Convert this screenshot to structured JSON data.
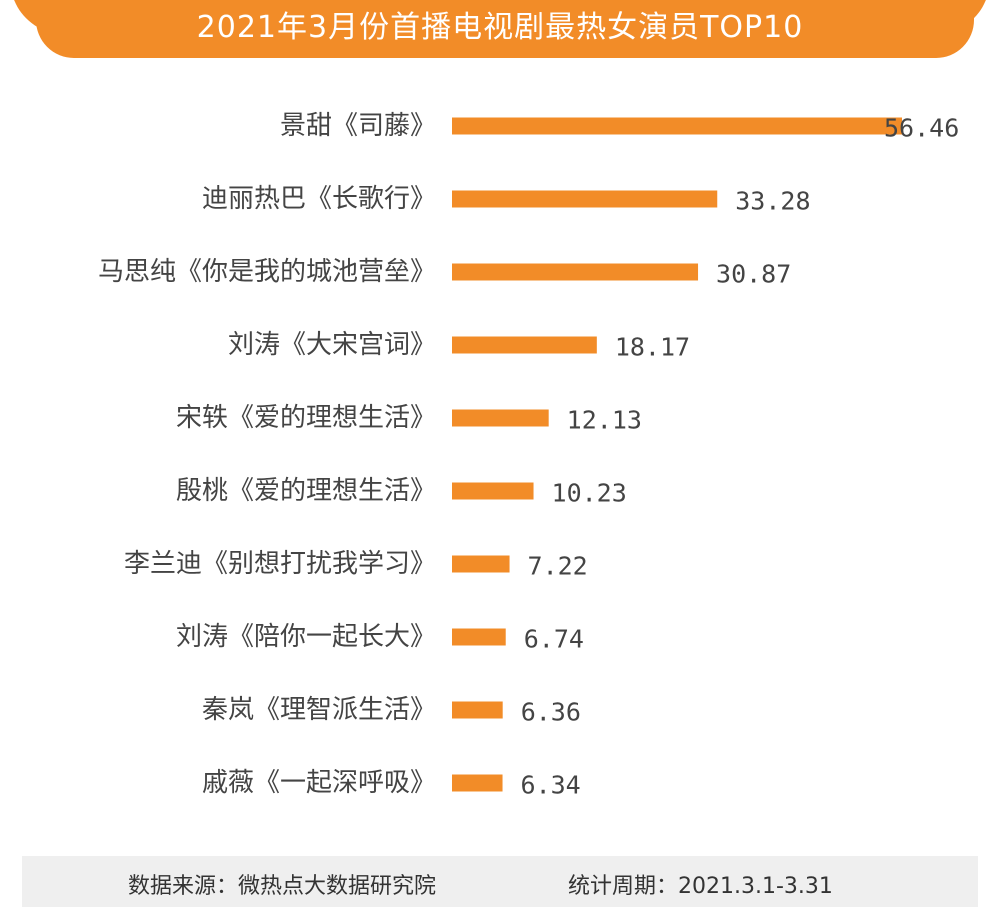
{
  "title": "2021年3月份首播电视剧最热女演员TOP10",
  "colors": {
    "accent": "#F28C28",
    "bar": "#F28C28",
    "text": "#444444",
    "footer_bg": "#EFEFEF"
  },
  "chart_data": {
    "type": "bar",
    "orientation": "horizontal",
    "title": "2021年3月份首播电视剧最热女演员TOP10",
    "categories": [
      "景甜《司藤》",
      "迪丽热巴《长歌行》",
      "马思纯《你是我的城池营垒》",
      "刘涛《大宋宫词》",
      "宋轶《爱的理想生活》",
      "殷桃《爱的理想生活》",
      "李兰迪《别想打扰我学习》",
      "刘涛《陪你一起长大》",
      "秦岚《理智派生活》",
      "戚薇《一起深呼吸》"
    ],
    "values": [
      56.46,
      33.28,
      30.87,
      18.17,
      12.13,
      10.23,
      7.22,
      6.74,
      6.36,
      6.34
    ],
    "value_labels": [
      "56.46",
      "33.28",
      "30.87",
      "18.17",
      "12.13",
      "10.23",
      "7.22",
      "6.74",
      "6.36",
      "6.34"
    ],
    "xlabel": "",
    "ylabel": "",
    "xlim": [
      0,
      56.46
    ],
    "grid": false,
    "legend": "none"
  },
  "footer": {
    "source": "数据来源：微热点大数据研究院",
    "period": "统计周期：2021.3.1-3.31"
  }
}
